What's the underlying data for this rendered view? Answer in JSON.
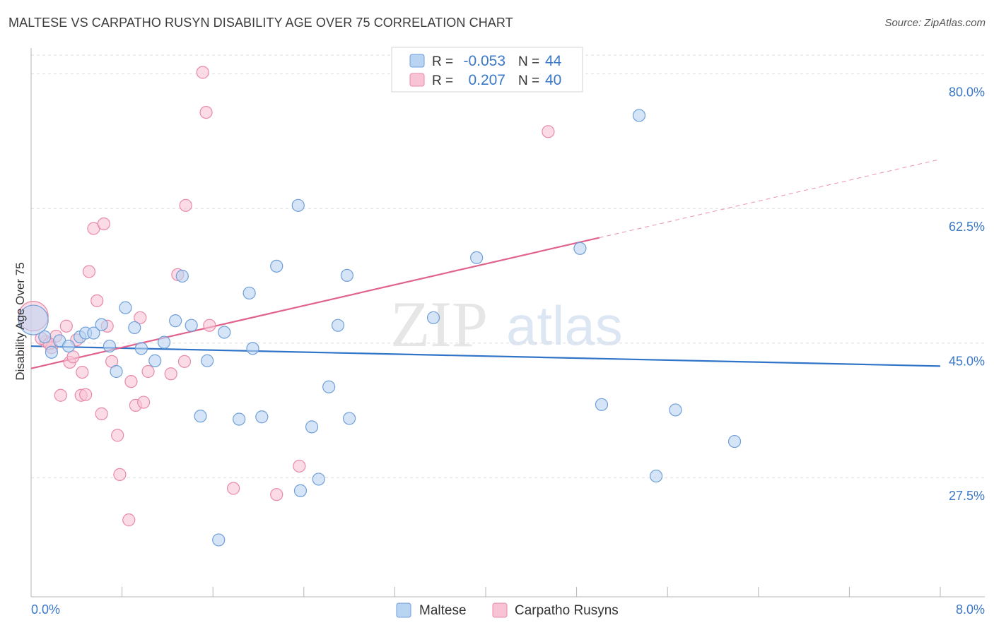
{
  "title": "MALTESE VS CARPATHO RUSYN DISABILITY AGE OVER 75 CORRELATION CHART",
  "source": "Source: ZipAtlas.com",
  "watermark": {
    "part1": "ZIP",
    "part2": "atlas"
  },
  "colors": {
    "blue_fill": "#b9d3f2",
    "blue_stroke": "#6f9fd8",
    "blue_line": "#2f74c9",
    "pink_fill": "#f8c3d4",
    "pink_stroke": "#e88aa8",
    "pink_line": "#e2628e",
    "grid": "#dddddd",
    "tick_label": "#3b78c8"
  },
  "legend": {
    "rows": [
      {
        "r_label": "R =",
        "r_value": "-0.053",
        "n_label": "N =",
        "n_value": "44"
      },
      {
        "r_label": "R =",
        "r_value": "0.207",
        "n_label": "N =",
        "n_value": "40"
      }
    ]
  },
  "bottom_legend": [
    "Maltese",
    "Carpatho Rusyns"
  ],
  "chart_data": {
    "type": "scatter",
    "title": "MALTESE VS CARPATHO RUSYN DISABILITY AGE OVER 75 CORRELATION CHART",
    "xlabel": "",
    "ylabel": "Disability Age Over 75",
    "xlim": [
      0,
      8
    ],
    "ylim": [
      12,
      83
    ],
    "x_tick_labels": {
      "left": "0.0%",
      "right": "8.0%"
    },
    "y_ticks": [
      {
        "value": 27.5,
        "label": "27.5%"
      },
      {
        "value": 45.0,
        "label": "45.0%"
      },
      {
        "value": 62.5,
        "label": "62.5%"
      },
      {
        "value": 80.0,
        "label": "80.0%"
      }
    ],
    "series": [
      {
        "name": "Maltese",
        "r": -0.053,
        "n": 44,
        "trend": {
          "x0": 0.0,
          "y0": 44.6,
          "x1": 8.0,
          "y1": 42.0,
          "dashed_from": null
        },
        "points": [
          {
            "x": 0.02,
            "y": 48.0,
            "big": true
          },
          {
            "x": 0.12,
            "y": 45.8
          },
          {
            "x": 0.18,
            "y": 43.8
          },
          {
            "x": 0.25,
            "y": 45.3
          },
          {
            "x": 0.33,
            "y": 44.6
          },
          {
            "x": 0.43,
            "y": 45.8
          },
          {
            "x": 0.48,
            "y": 46.3
          },
          {
            "x": 0.55,
            "y": 46.3
          },
          {
            "x": 0.62,
            "y": 47.4
          },
          {
            "x": 0.69,
            "y": 44.6
          },
          {
            "x": 0.75,
            "y": 41.3
          },
          {
            "x": 0.83,
            "y": 49.6
          },
          {
            "x": 0.91,
            "y": 47.0
          },
          {
            "x": 0.97,
            "y": 44.3
          },
          {
            "x": 1.09,
            "y": 42.7
          },
          {
            "x": 1.17,
            "y": 45.1
          },
          {
            "x": 1.27,
            "y": 47.9
          },
          {
            "x": 1.33,
            "y": 53.7
          },
          {
            "x": 1.41,
            "y": 47.3
          },
          {
            "x": 1.49,
            "y": 35.5
          },
          {
            "x": 1.55,
            "y": 42.7
          },
          {
            "x": 1.65,
            "y": 19.4
          },
          {
            "x": 1.7,
            "y": 46.4
          },
          {
            "x": 1.83,
            "y": 35.1
          },
          {
            "x": 1.92,
            "y": 51.5
          },
          {
            "x": 2.03,
            "y": 35.4
          },
          {
            "x": 2.16,
            "y": 55.0
          },
          {
            "x": 2.35,
            "y": 62.9
          },
          {
            "x": 2.37,
            "y": 25.8
          },
          {
            "x": 2.47,
            "y": 34.1
          },
          {
            "x": 2.53,
            "y": 27.3
          },
          {
            "x": 2.62,
            "y": 39.3
          },
          {
            "x": 2.7,
            "y": 47.3
          },
          {
            "x": 2.78,
            "y": 53.8
          },
          {
            "x": 2.8,
            "y": 35.2
          },
          {
            "x": 3.54,
            "y": 48.3
          },
          {
            "x": 3.92,
            "y": 56.1
          },
          {
            "x": 4.83,
            "y": 57.3
          },
          {
            "x": 5.02,
            "y": 37.0
          },
          {
            "x": 5.35,
            "y": 74.6
          },
          {
            "x": 5.5,
            "y": 27.7
          },
          {
            "x": 5.67,
            "y": 36.3
          },
          {
            "x": 6.19,
            "y": 32.2
          },
          {
            "x": 1.95,
            "y": 44.3
          }
        ]
      },
      {
        "name": "Carpatho Rusyns",
        "r": 0.207,
        "n": 40,
        "trend": {
          "x0": 0.0,
          "y0": 41.7,
          "x1": 8.0,
          "y1": 68.9,
          "dashed_from": 5.0
        },
        "points": [
          {
            "x": 0.02,
            "y": 48.5,
            "big": true
          },
          {
            "x": 0.13,
            "y": 45.2
          },
          {
            "x": 0.18,
            "y": 44.4
          },
          {
            "x": 0.26,
            "y": 38.2
          },
          {
            "x": 0.31,
            "y": 47.2
          },
          {
            "x": 0.34,
            "y": 42.5
          },
          {
            "x": 0.37,
            "y": 43.2
          },
          {
            "x": 0.4,
            "y": 45.4
          },
          {
            "x": 0.44,
            "y": 38.2
          },
          {
            "x": 0.45,
            "y": 41.2
          },
          {
            "x": 0.48,
            "y": 38.3
          },
          {
            "x": 0.51,
            "y": 54.3
          },
          {
            "x": 0.55,
            "y": 59.9
          },
          {
            "x": 0.58,
            "y": 50.5
          },
          {
            "x": 0.62,
            "y": 35.8
          },
          {
            "x": 0.64,
            "y": 60.5
          },
          {
            "x": 0.67,
            "y": 47.2
          },
          {
            "x": 0.71,
            "y": 42.6
          },
          {
            "x": 0.76,
            "y": 33.0
          },
          {
            "x": 0.78,
            "y": 27.9
          },
          {
            "x": 0.86,
            "y": 22.0
          },
          {
            "x": 0.88,
            "y": 40.0
          },
          {
            "x": 0.92,
            "y": 36.9
          },
          {
            "x": 0.96,
            "y": 48.3
          },
          {
            "x": 0.99,
            "y": 37.3
          },
          {
            "x": 1.03,
            "y": 41.3
          },
          {
            "x": 1.23,
            "y": 41.0
          },
          {
            "x": 1.29,
            "y": 53.9
          },
          {
            "x": 1.35,
            "y": 42.6
          },
          {
            "x": 1.36,
            "y": 62.9
          },
          {
            "x": 1.51,
            "y": 80.2
          },
          {
            "x": 1.54,
            "y": 75.0
          },
          {
            "x": 1.57,
            "y": 47.3
          },
          {
            "x": 1.78,
            "y": 26.1
          },
          {
            "x": 2.16,
            "y": 25.3
          },
          {
            "x": 2.36,
            "y": 29.0
          },
          {
            "x": 4.55,
            "y": 72.5
          },
          {
            "x": 0.22,
            "y": 45.9
          },
          {
            "x": 0.09,
            "y": 45.6
          },
          {
            "x": 0.16,
            "y": 44.9
          }
        ]
      }
    ]
  }
}
